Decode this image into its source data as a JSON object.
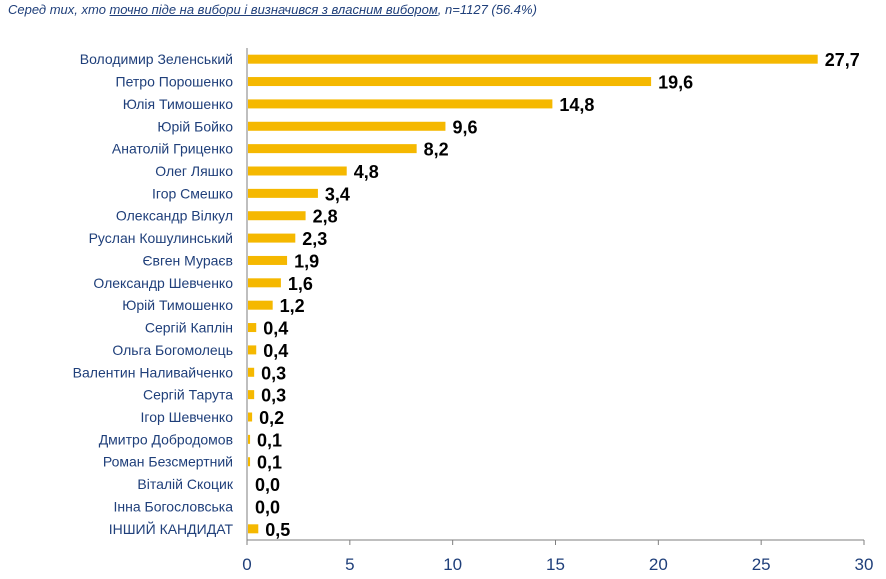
{
  "subtitle": {
    "prefix": "Серед тих, хто ",
    "underlined": "точно піде на вибори і визначився з власним вибором",
    "suffix": ", n=1127 (56.4%)"
  },
  "colors": {
    "bar": "#f5b800",
    "axis": "#7f7f7f",
    "category_text": "#1f3f7a",
    "value_text": "#000000"
  },
  "chart_data": {
    "type": "bar",
    "orientation": "horizontal",
    "categories": [
      "Володимир Зеленський",
      "Петро Порошенко",
      "Юлія Тимошенко",
      "Юрій Бойко",
      "Анатолій Гриценко",
      "Олег Ляшко",
      "Ігор Смешко",
      "Олександр Вілкул",
      "Руслан Кошулинський",
      "Євген Мураєв",
      "Олександр Шевченко",
      "Юрій Тимошенко",
      "Сергій Каплін",
      "Ольга Богомолець",
      "Валентин Наливайченко",
      "Сергій Тарута",
      "Ігор Шевченко",
      "Дмитро Добродомов",
      "Роман Безсмертний",
      "Віталій Скоцик",
      "Інна Богословська",
      "ІНШИЙ КАНДИДАТ"
    ],
    "values": [
      27.7,
      19.6,
      14.8,
      9.6,
      8.2,
      4.8,
      3.4,
      2.8,
      2.3,
      1.9,
      1.6,
      1.2,
      0.4,
      0.4,
      0.3,
      0.3,
      0.2,
      0.1,
      0.1,
      0.0,
      0.0,
      0.5
    ],
    "value_labels": [
      "27,7",
      "19,6",
      "14,8",
      "9,6",
      "8,2",
      "4,8",
      "3,4",
      "2,8",
      "2,3",
      "1,9",
      "1,6",
      "1,2",
      "0,4",
      "0,4",
      "0,3",
      "0,3",
      "0,2",
      "0,1",
      "0,1",
      "0,0",
      "0,0",
      "0,5"
    ],
    "xlim": [
      0,
      30
    ],
    "xticks": [
      0,
      5,
      10,
      15,
      20,
      25,
      30
    ],
    "grid": false,
    "legend": "none"
  }
}
